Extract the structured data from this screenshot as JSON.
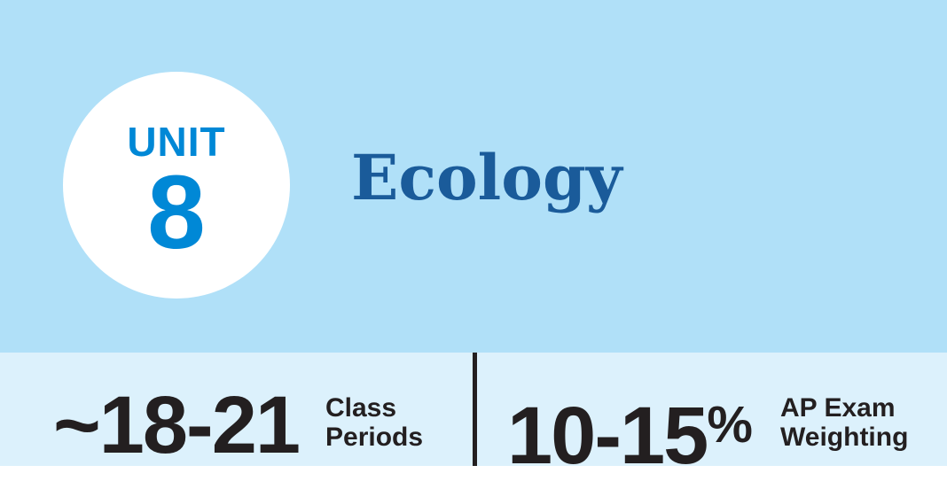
{
  "unit": {
    "label": "UNIT",
    "number": "8",
    "title": "Ecology"
  },
  "stats": {
    "class_periods": {
      "value": "~18-21",
      "label": "Class\nPeriods"
    },
    "exam_weighting": {
      "value": "10-15",
      "suffix": "%",
      "label": "AP Exam\nWeighting"
    }
  },
  "colors": {
    "header_background": "#b0e0f8",
    "stats_background": "#dcf1fc",
    "unit_badge": "#ffffff",
    "unit_accent": "#0088d6",
    "title_color": "#1a5b9a",
    "stat_text": "#231f20"
  }
}
